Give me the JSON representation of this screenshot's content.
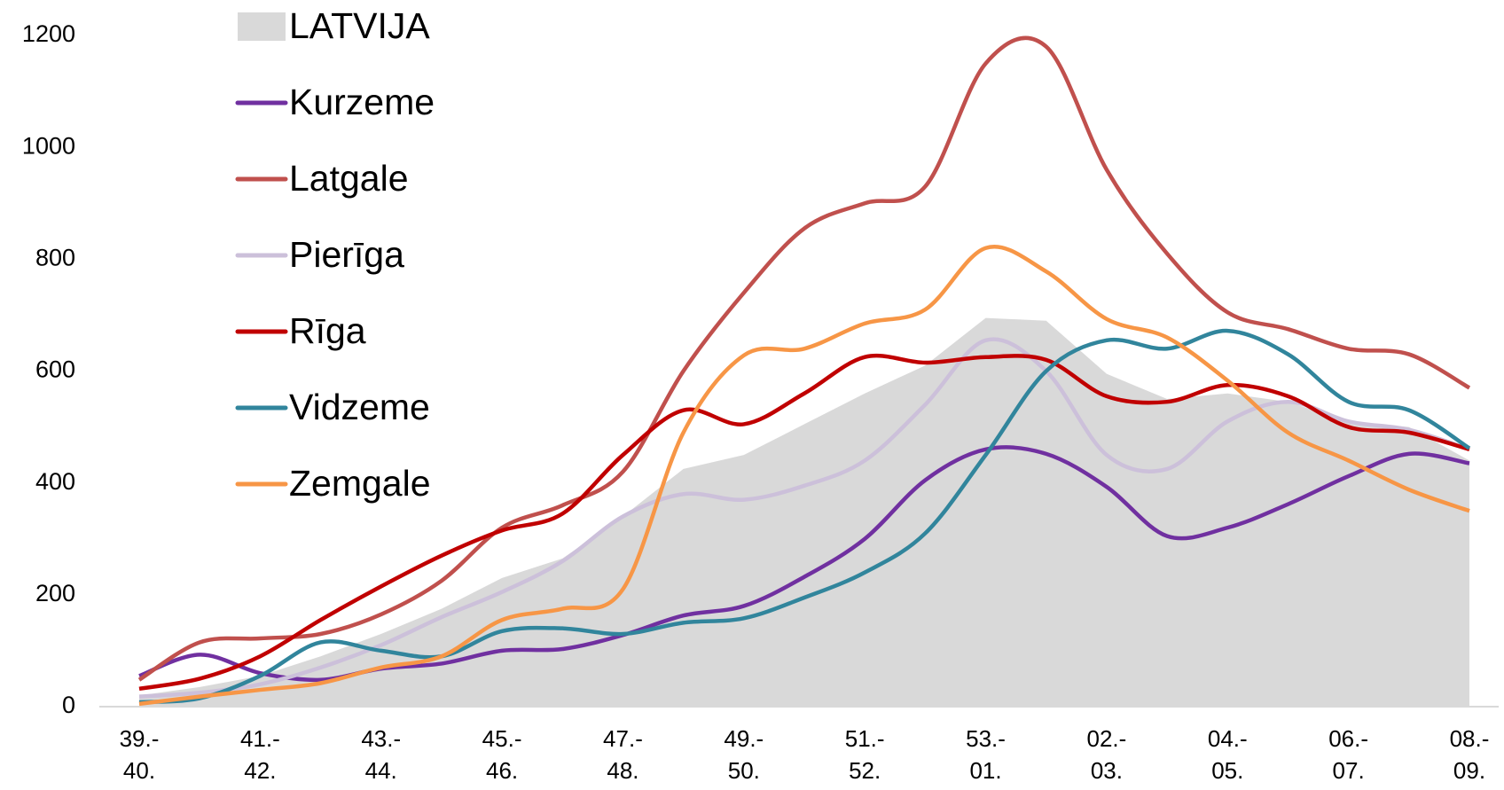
{
  "chart_data": {
    "type": "line",
    "categories": [
      "39.-\n40.",
      null,
      "41.-\n42.",
      null,
      "43.-\n44.",
      null,
      "45.-\n46.",
      null,
      "47.-\n48.",
      null,
      "49.-\n50.",
      null,
      "51.-\n52.",
      null,
      "53.-\n01.",
      null,
      "02.-\n03.",
      null,
      "04.-\n05.",
      null,
      "06.-\n07.",
      null,
      "08.-\n09."
    ],
    "series": [
      {
        "name": "LATVIJA",
        "type": "area",
        "color": "#d9d9d9",
        "values": [
          20,
          35,
          55,
          90,
          130,
          175,
          230,
          265,
          340,
          425,
          450,
          505,
          560,
          610,
          695,
          690,
          595,
          550,
          560,
          545,
          510,
          500,
          440
        ]
      },
      {
        "name": "Kurzeme",
        "color": "#7030a0",
        "values": [
          55,
          93,
          60,
          48,
          68,
          77,
          100,
          103,
          128,
          163,
          180,
          232,
          300,
          405,
          460,
          452,
          393,
          305,
          320,
          362,
          412,
          452,
          435
        ]
      },
      {
        "name": "Latgale",
        "color": "#c0504d",
        "values": [
          48,
          115,
          122,
          130,
          165,
          225,
          320,
          360,
          420,
          600,
          740,
          855,
          900,
          930,
          1150,
          1180,
          960,
          810,
          705,
          675,
          640,
          630,
          570
        ]
      },
      {
        "name": "Pierīga",
        "color": "#ccc0da",
        "values": [
          18,
          25,
          40,
          70,
          110,
          160,
          205,
          260,
          340,
          380,
          370,
          395,
          440,
          540,
          655,
          600,
          450,
          425,
          510,
          545,
          510,
          495,
          460
        ]
      },
      {
        "name": "Rīga",
        "color": "#c00000",
        "values": [
          32,
          50,
          90,
          155,
          215,
          270,
          315,
          345,
          450,
          530,
          505,
          560,
          625,
          615,
          625,
          620,
          555,
          545,
          575,
          555,
          500,
          490,
          460
        ]
      },
      {
        "name": "Vidzeme",
        "color": "#31859c",
        "values": [
          8,
          15,
          55,
          115,
          100,
          90,
          135,
          140,
          130,
          150,
          158,
          195,
          240,
          310,
          450,
          600,
          655,
          640,
          672,
          630,
          545,
          530,
          462
        ]
      },
      {
        "name": "Zemgale",
        "color": "#f79646",
        "values": [
          5,
          18,
          30,
          42,
          70,
          90,
          155,
          175,
          210,
          490,
          628,
          640,
          685,
          710,
          820,
          778,
          693,
          660,
          583,
          490,
          440,
          388,
          350
        ]
      }
    ],
    "ylim": [
      0,
      1200
    ],
    "yticks": [
      0,
      200,
      400,
      600,
      800,
      1000,
      1200
    ],
    "grid": false,
    "legend": "top-left"
  }
}
